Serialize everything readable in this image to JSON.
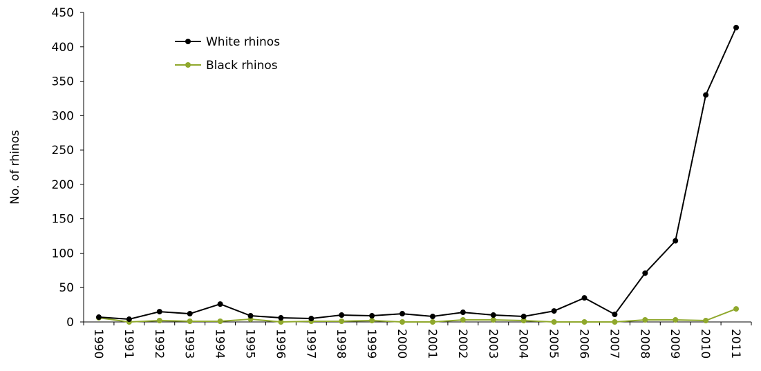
{
  "chart_data": {
    "type": "line",
    "title": "",
    "xlabel": "",
    "ylabel": "No. of rhinos",
    "ylim": [
      0,
      450
    ],
    "yticks": [
      0,
      50,
      100,
      150,
      200,
      250,
      300,
      350,
      400,
      450
    ],
    "grid": false,
    "legend_position": "top-left",
    "x": [
      "1990",
      "1991",
      "1992",
      "1993",
      "1994",
      "1995",
      "1996",
      "1997",
      "1998",
      "1999",
      "2000",
      "2001",
      "2002",
      "2003",
      "2004",
      "2005",
      "2006",
      "2007",
      "2008",
      "2009",
      "2010",
      "2011"
    ],
    "series": [
      {
        "name": "White rhinos",
        "color": "#000000",
        "values": [
          7,
          4,
          15,
          12,
          26,
          9,
          6,
          5,
          10,
          9,
          12,
          8,
          14,
          10,
          8,
          16,
          35,
          11,
          71,
          118,
          330,
          428
        ]
      },
      {
        "name": "Black rhinos",
        "color": "#8fa82c",
        "values": [
          6,
          0,
          2,
          1,
          1,
          4,
          0,
          1,
          1,
          2,
          0,
          0,
          3,
          3,
          2,
          0,
          0,
          0,
          3,
          3,
          2,
          19
        ]
      }
    ]
  }
}
